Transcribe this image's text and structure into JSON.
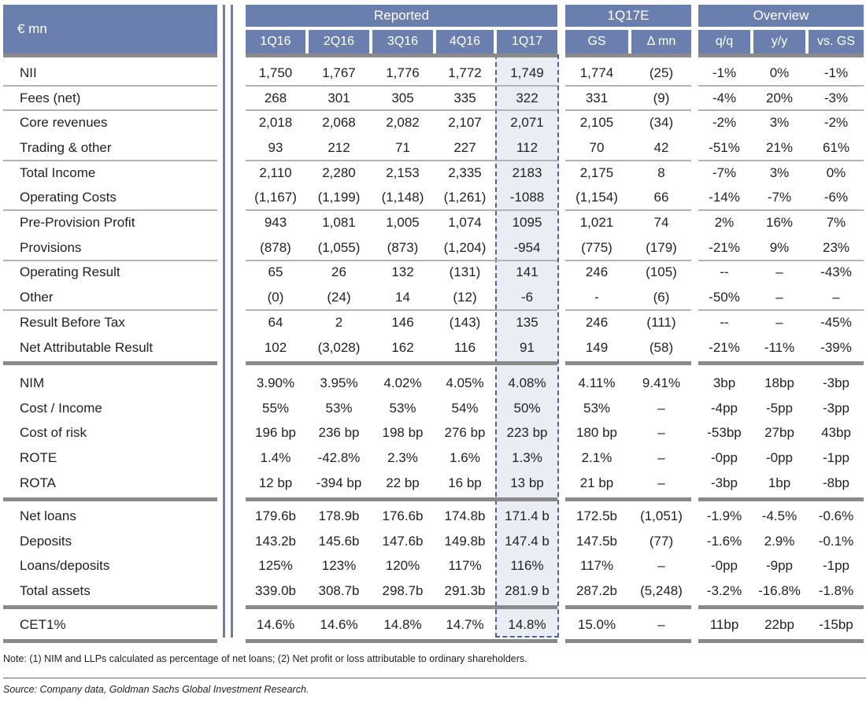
{
  "corner_label": "€ mn",
  "groups": {
    "reported": "Reported",
    "estimate": "1Q17E",
    "overview": "Overview"
  },
  "columns": [
    "1Q16",
    "2Q16",
    "3Q16",
    "4Q16",
    "1Q17",
    "GS",
    "Δ mn",
    "q/q",
    "y/y",
    "vs. GS"
  ],
  "sections": [
    {
      "rows": [
        {
          "label": "NII",
          "values": [
            "1,750",
            "1,767",
            "1,776",
            "1,772",
            "1,749",
            "1,774",
            "(25)",
            "-1%",
            "0%",
            "-1%"
          ]
        },
        {
          "label": "Fees (net)",
          "values": [
            "268",
            "301",
            "305",
            "335",
            "322",
            "331",
            "(9)",
            "-4%",
            "20%",
            "-3%"
          ]
        },
        {
          "label": "Core revenues",
          "values": [
            "2,018",
            "2,068",
            "2,082",
            "2,107",
            "2,071",
            "2,105",
            "(34)",
            "-2%",
            "3%",
            "-2%"
          ]
        },
        {
          "label": "Trading & other",
          "values": [
            "93",
            "212",
            "71",
            "227",
            "112",
            "70",
            "42",
            "-51%",
            "21%",
            "61%"
          ]
        },
        {
          "label": "Total Income",
          "values": [
            "2,110",
            "2,280",
            "2,153",
            "2,335",
            "2183",
            "2,175",
            "8",
            "-7%",
            "3%",
            "0%"
          ]
        },
        {
          "label": "Operating Costs",
          "values": [
            "(1,167)",
            "(1,199)",
            "(1,148)",
            "(1,261)",
            "-1088",
            "(1,154)",
            "66",
            "-14%",
            "-7%",
            "-6%"
          ]
        },
        {
          "label": "Pre-Provision Profit",
          "values": [
            "943",
            "1,081",
            "1,005",
            "1,074",
            "1095",
            "1,021",
            "74",
            "2%",
            "16%",
            "7%"
          ]
        },
        {
          "label": "Provisions",
          "values": [
            "(878)",
            "(1,055)",
            "(873)",
            "(1,204)",
            "-954",
            "(775)",
            "(179)",
            "-21%",
            "9%",
            "23%"
          ]
        },
        {
          "label": "Operating Result",
          "values": [
            "65",
            "26",
            "132",
            "(131)",
            "141",
            "246",
            "(105)",
            "--",
            "–",
            "-43%"
          ]
        },
        {
          "label": "Other",
          "values": [
            "(0)",
            "(24)",
            "14",
            "(12)",
            "-6",
            "-",
            "(6)",
            "-50%",
            "–",
            "–"
          ]
        },
        {
          "label": "Result Before Tax",
          "values": [
            "64",
            "2",
            "146",
            "(143)",
            "135",
            "246",
            "(111)",
            "--",
            "–",
            "-45%"
          ]
        },
        {
          "label": "Net Attributable Result",
          "values": [
            "102",
            "(3,028)",
            "162",
            "116",
            "91",
            "149",
            "(58)",
            "-21%",
            "-11%",
            "-39%"
          ]
        }
      ]
    },
    {
      "rows": [
        {
          "label": "NIM",
          "values": [
            "3.90%",
            "3.95%",
            "4.02%",
            "4.05%",
            "4.08%",
            "4.11%",
            "9.41%",
            "3bp",
            "18bp",
            "-3bp"
          ]
        },
        {
          "label": "Cost / Income",
          "values": [
            "55%",
            "53%",
            "53%",
            "54%",
            "50%",
            "53%",
            "–",
            "-4pp",
            "-5pp",
            "-3pp"
          ]
        },
        {
          "label": "Cost of risk",
          "values": [
            "196 bp",
            "236 bp",
            "198 bp",
            "276 bp",
            "223 bp",
            "180 bp",
            "–",
            "-53bp",
            "27bp",
            "43bp"
          ]
        },
        {
          "label": "ROTE",
          "values": [
            "1.4%",
            "-42.8%",
            "2.3%",
            "1.6%",
            "1.3%",
            "2.1%",
            "–",
            "-0pp",
            "-0pp",
            "-1pp"
          ]
        },
        {
          "label": "ROTA",
          "values": [
            "12 bp",
            "-394 bp",
            "22 bp",
            "16 bp",
            "13 bp",
            "21 bp",
            "–",
            "-3bp",
            "1bp",
            "-8bp"
          ]
        }
      ]
    },
    {
      "rows": [
        {
          "label": "Net loans",
          "values": [
            "179.6b",
            "178.9b",
            "176.6b",
            "174.8b",
            "171.4 b",
            "172.5b",
            "(1,051)",
            "-1.9%",
            "-4.5%",
            "-0.6%"
          ]
        },
        {
          "label": "Deposits",
          "values": [
            "143.2b",
            "145.6b",
            "147.6b",
            "149.8b",
            "147.4 b",
            "147.5b",
            "(77)",
            "-1.6%",
            "2.9%",
            "-0.1%"
          ]
        },
        {
          "label": "Loans/deposits",
          "values": [
            "125%",
            "123%",
            "120%",
            "117%",
            "116%",
            "117%",
            "–",
            "-0pp",
            "-9pp",
            "-1pp"
          ]
        },
        {
          "label": "Total assets",
          "values": [
            "339.0b",
            "308.7b",
            "298.7b",
            "291.3b",
            "281.9 b",
            "287.2b",
            "(5,248)",
            "-3.2%",
            "-16.8%",
            "-1.8%"
          ]
        }
      ]
    },
    {
      "rows": [
        {
          "label": "CET1%",
          "values": [
            "14.6%",
            "14.6%",
            "14.8%",
            "14.7%",
            "14.8%",
            "15.0%",
            "–",
            "11bp",
            "22bp",
            "-15bp"
          ]
        }
      ]
    }
  ],
  "note": "Note: (1) NIM and LLPs calculated as percentage of net loans; (2) Net profit or loss attributable to ordinary shareholders.",
  "source": "Source: Company data, Goldman Sachs Global Investment Research.",
  "colors": {
    "header": "#6a7fad",
    "highlight_border": "#4e6296"
  }
}
